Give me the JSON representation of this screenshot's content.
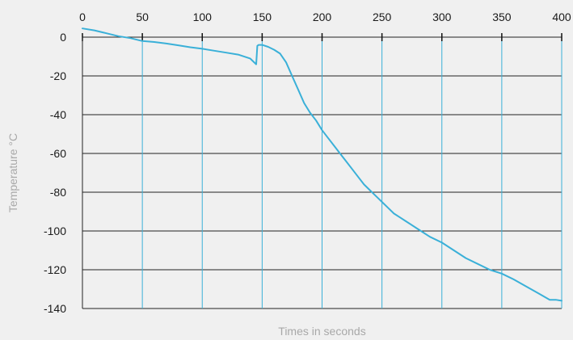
{
  "chart_data": {
    "type": "line",
    "title": "",
    "xlabel": "Times in seconds",
    "ylabel": "Temperature °C",
    "xlim": [
      0,
      400
    ],
    "ylim": [
      -140,
      0
    ],
    "xticks": [
      0,
      50,
      100,
      150,
      200,
      250,
      300,
      350,
      400
    ],
    "yticks": [
      0,
      -20,
      -40,
      -60,
      -80,
      -100,
      -120,
      -140
    ],
    "x_axis_position": "top",
    "grid": {
      "vertical_lines": true,
      "horizontal_lines": true
    },
    "colors": {
      "line": "#3ab0d8",
      "grid_v": "#3ab0d8",
      "grid_h": "#222222",
      "background": "#f0f0f0"
    },
    "series": [
      {
        "x": [
          0,
          10,
          20,
          30,
          40,
          50,
          60,
          70,
          80,
          90,
          100,
          110,
          120,
          130,
          140,
          145,
          146,
          147,
          150,
          155,
          160,
          165,
          170,
          175,
          180,
          185,
          190,
          195,
          200,
          205,
          210,
          215,
          220,
          225,
          230,
          235,
          240,
          245,
          250,
          255,
          260,
          265,
          270,
          280,
          290,
          300,
          310,
          320,
          330,
          340,
          350,
          360,
          370,
          380,
          390,
          395,
          400
        ],
        "y": [
          4.5,
          3.5,
          2,
          0.5,
          -0.5,
          -2,
          -2.5,
          -3.3,
          -4.2,
          -5.2,
          -6,
          -7,
          -8,
          -9,
          -11,
          -14,
          -4.5,
          -4,
          -4,
          -5,
          -6.5,
          -8.5,
          -13,
          -20,
          -27,
          -34,
          -39,
          -43,
          -48,
          -52,
          -56,
          -60,
          -64,
          -68,
          -72,
          -76,
          -79,
          -82,
          -85,
          -88,
          -91,
          -93,
          -95,
          -99,
          -103,
          -106,
          -110,
          -114,
          -117,
          -120,
          -122,
          -125,
          -128.5,
          -132,
          -135.5,
          -135.5,
          -136
        ]
      }
    ]
  }
}
